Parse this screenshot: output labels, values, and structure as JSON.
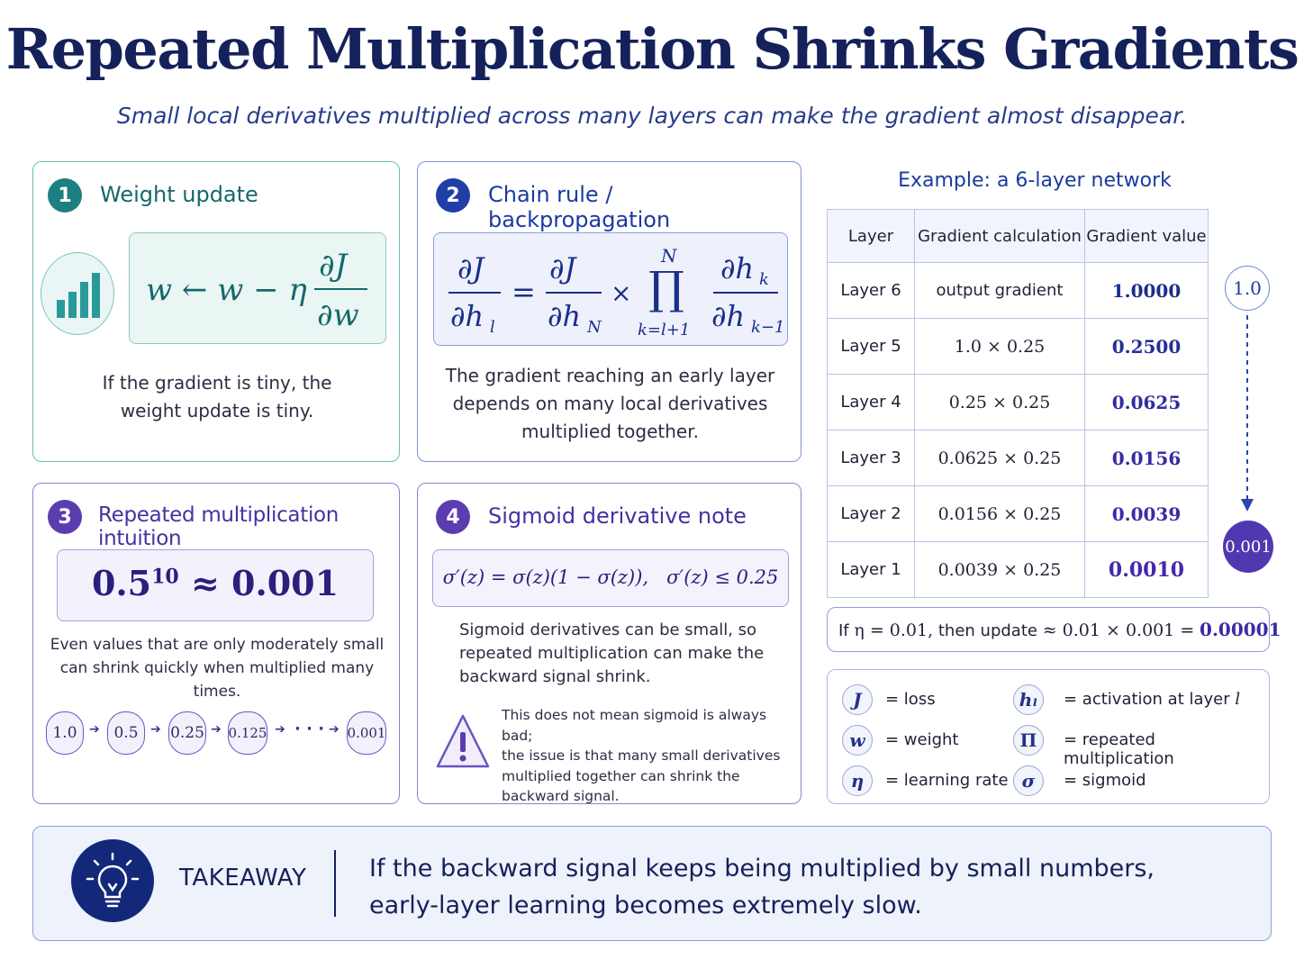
{
  "title": "Repeated Multiplication Shrinks Gradients",
  "subtitle": "Small local derivatives multiplied across many layers can make the gradient almost disappear.",
  "card1": {
    "num": "1",
    "title": "Weight update",
    "text_line1": "If the gradient is tiny, the",
    "text_line2": "weight update is tiny."
  },
  "card2": {
    "num": "2",
    "title": "Chain rule / backpropagation",
    "text_line1": "The gradient reaching an early layer",
    "text_line2": "depends on many local derivatives",
    "text_line3": "multiplied together."
  },
  "card3": {
    "num": "3",
    "title": "Repeated multiplication intuition",
    "formula_base": "0.5",
    "formula_exp": "10",
    "formula_rest": "≈ 0.001",
    "text_line1": "Even values that are only moderately small",
    "text_line2": "can shrink quickly when multiplied many times.",
    "chain": [
      "1.0",
      "0.5",
      "0.25",
      "0.125",
      "0.001"
    ],
    "dots": "· · ·"
  },
  "card4": {
    "num": "4",
    "title": "Sigmoid derivative note",
    "formula": "σ′(z) = σ(z)(1 − σ(z)),   σ′(z) ≤ 0.25",
    "text_line1": "Sigmoid derivatives can be small, so",
    "text_line2": "repeated multiplication can make the",
    "text_line3": "backward signal shrink.",
    "warn_line1": "This does not mean sigmoid is always bad;",
    "warn_line2": "the issue is that many small derivatives",
    "warn_line3": "multiplied together can shrink the",
    "warn_line4": "backward signal."
  },
  "example": {
    "title": "Example: a 6-layer network",
    "headers": [
      "Layer",
      "Gradient calculation",
      "Gradient value"
    ],
    "rows": [
      [
        "Layer 6",
        "output gradient",
        "1.0000"
      ],
      [
        "Layer 5",
        "1.0 × 0.25",
        "0.2500"
      ],
      [
        "Layer 4",
        "0.25 × 0.25",
        "0.0625"
      ],
      [
        "Layer 3",
        "0.0625 × 0.25",
        "0.0156"
      ],
      [
        "Layer 2",
        "0.0156 × 0.25",
        "0.0039"
      ],
      [
        "Layer 1",
        "0.0039 × 0.25",
        "0.0010"
      ]
    ],
    "top_badge": "1.0",
    "bottom_badge": "0.001"
  },
  "update_note": {
    "prefix": "If",
    "eta_part": "η = 0.01,",
    "mid": "then update",
    "calc": "≈ 0.01 × 0.001 =",
    "result": "0.00001"
  },
  "legend": [
    {
      "symbol": "J",
      "text": "= loss"
    },
    {
      "symbol": "w",
      "text": "= weight"
    },
    {
      "symbol": "η",
      "text": "= learning rate"
    },
    {
      "symbol": "hₗ",
      "text": "= activation at layer",
      "suffix": "l"
    },
    {
      "symbol": "Π",
      "text": "= repeated multiplication"
    },
    {
      "symbol": "σ",
      "text": "= sigmoid"
    }
  ],
  "takeaway": {
    "label": "TAKEAWAY",
    "line1": "If the backward signal keeps being multiplied by small numbers,",
    "line2": "early-layer learning becomes extremely slow."
  },
  "colors": {
    "teal": "#1e7f80",
    "blue": "#1f3ea8",
    "purple": "#5b3db0",
    "navy": "#14215a"
  }
}
